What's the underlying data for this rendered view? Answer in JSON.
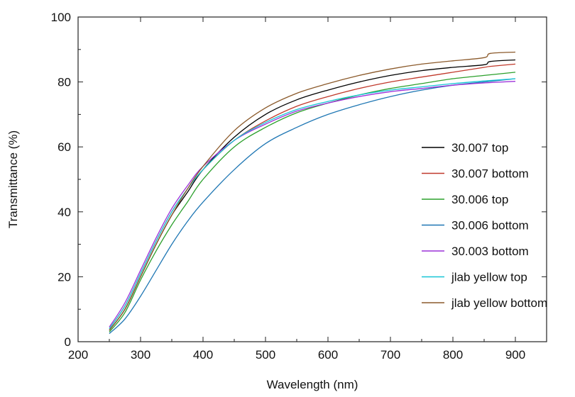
{
  "chart_data": {
    "type": "line",
    "title": "",
    "xlabel": "Wavelength (nm)",
    "ylabel": "Transmittance (%)",
    "xlim": [
      200,
      950
    ],
    "ylim": [
      0,
      100
    ],
    "xticks": [
      200,
      300,
      400,
      500,
      600,
      700,
      800,
      900
    ],
    "yticks": [
      0,
      20,
      40,
      60,
      80,
      100
    ],
    "grid": false,
    "legend_position": "right",
    "series": [
      {
        "name": "30.007 top",
        "color": "#000000",
        "x": [
          250,
          275,
          300,
          325,
          350,
          375,
          400,
          450,
          500,
          550,
          600,
          650,
          700,
          750,
          800,
          850,
          860,
          900
        ],
        "y": [
          3.5,
          10,
          20,
          30,
          39,
          46,
          53,
          63,
          70,
          74.5,
          77.5,
          80,
          82,
          83.5,
          84.5,
          85.3,
          86.3,
          86.8
        ]
      },
      {
        "name": "30.007 bottom",
        "color": "#c0392b",
        "x": [
          250,
          275,
          300,
          325,
          350,
          375,
          400,
          450,
          500,
          550,
          600,
          650,
          700,
          750,
          800,
          850,
          860,
          900
        ],
        "y": [
          4,
          11,
          21,
          31,
          40,
          47,
          53,
          62,
          68,
          72.5,
          75.5,
          78,
          80,
          81.5,
          83,
          84.5,
          84.8,
          85.5
        ]
      },
      {
        "name": "30.006 top",
        "color": "#2ca02c",
        "x": [
          250,
          275,
          300,
          325,
          350,
          375,
          400,
          450,
          500,
          550,
          600,
          650,
          700,
          750,
          800,
          850,
          900
        ],
        "y": [
          3,
          9,
          19,
          28,
          36,
          43,
          50,
          60,
          66,
          70.5,
          73.5,
          76,
          78,
          79.5,
          81,
          82,
          83
        ]
      },
      {
        "name": "30.006 bottom",
        "color": "#1f77b4",
        "x": [
          250,
          275,
          300,
          325,
          350,
          375,
          400,
          450,
          500,
          550,
          600,
          650,
          700,
          750,
          800,
          850,
          900
        ],
        "y": [
          2.5,
          7,
          14,
          22,
          30,
          37,
          43,
          53,
          61,
          66,
          70,
          73,
          75.5,
          77.5,
          79,
          80,
          81
        ]
      },
      {
        "name": "30.003 bottom",
        "color": "#9b30d9",
        "x": [
          250,
          275,
          300,
          325,
          350,
          375,
          400,
          450,
          500,
          550,
          600,
          650,
          700,
          750,
          800,
          850,
          900
        ],
        "y": [
          4.5,
          12,
          22,
          32,
          41,
          48,
          54,
          62,
          67,
          71,
          73.5,
          75.5,
          77,
          78,
          79,
          79.7,
          80.2
        ]
      },
      {
        "name": "jlab yellow top",
        "color": "#17c5d6",
        "x": [
          250,
          275,
          300,
          325,
          350,
          375,
          400,
          450,
          500,
          550,
          600,
          650,
          700,
          750,
          800,
          850,
          900
        ],
        "y": [
          4,
          11,
          21,
          31,
          40,
          47,
          53,
          62,
          67.5,
          71.5,
          74,
          76,
          77.5,
          78.5,
          79.5,
          80.3,
          81
        ]
      },
      {
        "name": "jlab yellow bottom",
        "color": "#8b5a2b",
        "x": [
          250,
          275,
          300,
          325,
          350,
          375,
          400,
          450,
          500,
          550,
          600,
          650,
          700,
          750,
          800,
          850,
          860,
          900
        ],
        "y": [
          3.5,
          10,
          20,
          30,
          39,
          47,
          54,
          65,
          72,
          76.5,
          79.5,
          82,
          84,
          85.5,
          86.5,
          87.5,
          88.8,
          89.2
        ]
      }
    ]
  }
}
